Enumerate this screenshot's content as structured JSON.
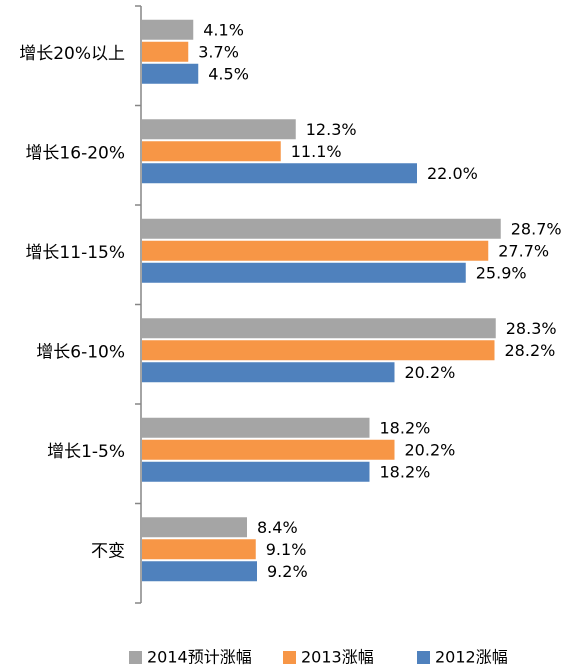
{
  "chart_data": {
    "type": "bar",
    "orientation": "horizontal",
    "categories": [
      "增长20%以上",
      "增长16-20%",
      "增长11-15%",
      "增长6-10%",
      "增长1-5%",
      "不变"
    ],
    "series": [
      {
        "name": "2014预计涨幅",
        "color": "#A5A5A5",
        "values": [
          4.1,
          12.3,
          28.7,
          28.3,
          18.2,
          8.4
        ],
        "labels": [
          "4.1%",
          "12.3%",
          "28.7%",
          "28.3%",
          "18.2%",
          "8.4%"
        ]
      },
      {
        "name": "2013涨幅",
        "color": "#F79646",
        "values": [
          3.7,
          11.1,
          27.7,
          28.2,
          20.2,
          9.1
        ],
        "labels": [
          "3.7%",
          "11.1%",
          "27.7%",
          "28.2%",
          "20.2%",
          "9.1%"
        ]
      },
      {
        "name": "2012涨幅",
        "color": "#4F81BD",
        "values": [
          4.5,
          22.0,
          25.9,
          20.2,
          18.2,
          9.2
        ],
        "labels": [
          "4.5%",
          "22.0%",
          "25.9%",
          "20.2%",
          "18.2%",
          "9.2%"
        ]
      }
    ],
    "xlim": [
      0,
      40
    ],
    "grid": false,
    "legend_position": "bottom"
  }
}
